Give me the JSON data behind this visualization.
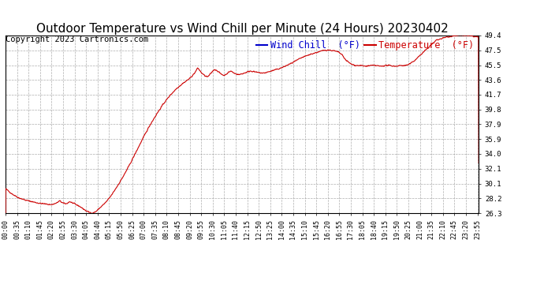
{
  "title": "Outdoor Temperature vs Wind Chill per Minute (24 Hours) 20230402",
  "copyright_text": "Copyright 2023 Cartronics.com",
  "legend_wind_chill": "Wind Chill  (°F)",
  "legend_temperature": "Temperature  (°F)",
  "line_color": "#cc0000",
  "wind_chill_color": "#0000cc",
  "temperature_color": "#cc0000",
  "background_color": "#ffffff",
  "grid_color": "#aaaaaa",
  "ylim": [
    26.3,
    49.4
  ],
  "yticks": [
    26.3,
    28.2,
    30.1,
    32.1,
    34.0,
    35.9,
    37.9,
    39.8,
    41.7,
    43.6,
    45.5,
    47.5,
    49.4
  ],
  "title_fontsize": 11,
  "copyright_fontsize": 7.5,
  "legend_fontsize": 8.5,
  "tick_fontsize": 6.0,
  "control_points": [
    [
      0,
      29.5
    ],
    [
      20,
      28.8
    ],
    [
      40,
      28.3
    ],
    [
      60,
      28.0
    ],
    [
      80,
      27.8
    ],
    [
      100,
      27.6
    ],
    [
      120,
      27.5
    ],
    [
      140,
      27.4
    ],
    [
      155,
      27.6
    ],
    [
      165,
      27.9
    ],
    [
      175,
      27.6
    ],
    [
      185,
      27.5
    ],
    [
      195,
      27.8
    ],
    [
      205,
      27.6
    ],
    [
      215,
      27.4
    ],
    [
      225,
      27.2
    ],
    [
      235,
      26.9
    ],
    [
      245,
      26.6
    ],
    [
      255,
      26.4
    ],
    [
      265,
      26.3
    ],
    [
      275,
      26.5
    ],
    [
      285,
      26.9
    ],
    [
      295,
      27.3
    ],
    [
      305,
      27.7
    ],
    [
      315,
      28.2
    ],
    [
      325,
      28.8
    ],
    [
      340,
      29.8
    ],
    [
      360,
      31.2
    ],
    [
      380,
      32.8
    ],
    [
      400,
      34.5
    ],
    [
      420,
      36.2
    ],
    [
      440,
      37.8
    ],
    [
      460,
      39.2
    ],
    [
      480,
      40.5
    ],
    [
      500,
      41.6
    ],
    [
      520,
      42.5
    ],
    [
      540,
      43.2
    ],
    [
      560,
      43.8
    ],
    [
      575,
      44.5
    ],
    [
      585,
      45.2
    ],
    [
      595,
      44.6
    ],
    [
      605,
      44.2
    ],
    [
      615,
      44.0
    ],
    [
      625,
      44.5
    ],
    [
      635,
      45.0
    ],
    [
      645,
      44.8
    ],
    [
      655,
      44.4
    ],
    [
      665,
      44.2
    ],
    [
      675,
      44.5
    ],
    [
      685,
      44.8
    ],
    [
      695,
      44.5
    ],
    [
      710,
      44.3
    ],
    [
      725,
      44.5
    ],
    [
      745,
      44.8
    ],
    [
      765,
      44.6
    ],
    [
      785,
      44.5
    ],
    [
      810,
      44.8
    ],
    [
      840,
      45.2
    ],
    [
      870,
      45.8
    ],
    [
      900,
      46.5
    ],
    [
      930,
      47.0
    ],
    [
      955,
      47.3
    ],
    [
      970,
      47.5
    ],
    [
      985,
      47.5
    ],
    [
      1000,
      47.4
    ],
    [
      1015,
      47.2
    ],
    [
      1025,
      46.8
    ],
    [
      1035,
      46.2
    ],
    [
      1050,
      45.7
    ],
    [
      1065,
      45.5
    ],
    [
      1080,
      45.5
    ],
    [
      1095,
      45.4
    ],
    [
      1110,
      45.5
    ],
    [
      1125,
      45.5
    ],
    [
      1140,
      45.4
    ],
    [
      1155,
      45.5
    ],
    [
      1170,
      45.5
    ],
    [
      1185,
      45.4
    ],
    [
      1200,
      45.5
    ],
    [
      1215,
      45.5
    ],
    [
      1225,
      45.6
    ],
    [
      1240,
      46.0
    ],
    [
      1260,
      46.8
    ],
    [
      1285,
      47.8
    ],
    [
      1310,
      48.8
    ],
    [
      1340,
      49.2
    ],
    [
      1370,
      49.4
    ],
    [
      1400,
      49.4
    ],
    [
      1420,
      49.3
    ],
    [
      1439,
      49.2
    ]
  ]
}
